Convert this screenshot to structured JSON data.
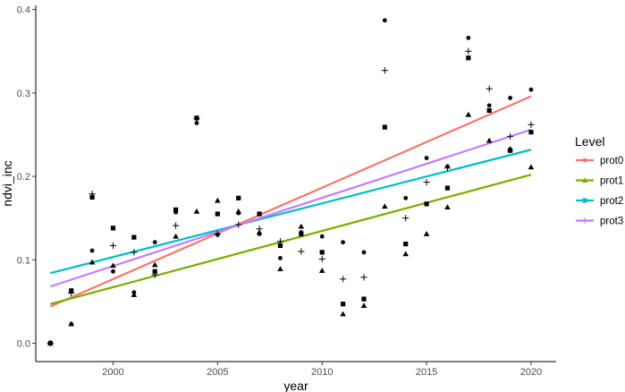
{
  "chart_data": {
    "type": "scatter",
    "xlabel": "year",
    "ylabel": "ndvi_inc",
    "xlim": [
      1996.3,
      2021.2
    ],
    "ylim": [
      -0.022,
      0.405
    ],
    "xticks": [
      2000,
      2005,
      2010,
      2015,
      2020
    ],
    "xtick_labels": [
      "2000",
      "2005",
      "2010",
      "2015",
      "2020"
    ],
    "yticks": [
      0.0,
      0.1,
      0.2,
      0.3,
      0.4
    ],
    "ytick_labels": [
      "0.0",
      "0.1",
      "0.2",
      "0.3",
      "0.4"
    ],
    "grid": false,
    "legend": {
      "title": "Level",
      "placement": "right"
    },
    "series": [
      {
        "name": "prot0",
        "color": "#F8766D",
        "marker": "circle",
        "trend": {
          "x": [
            1997,
            2020
          ],
          "y": [
            0.044,
            0.296
          ]
        },
        "points": [
          [
            1997,
            0.0
          ],
          [
            1998,
            0.023
          ],
          [
            1999,
            0.111
          ],
          [
            2000,
            0.086
          ],
          [
            2001,
            0.061
          ],
          [
            2002,
            0.121
          ],
          [
            2003,
            0.157
          ],
          [
            2004,
            0.264
          ],
          [
            2005,
            0.13
          ],
          [
            2006,
            0.156
          ],
          [
            2007,
            0.131
          ],
          [
            2008,
            0.102
          ],
          [
            2009,
            0.133
          ],
          [
            2010,
            0.128
          ],
          [
            2011,
            0.121
          ],
          [
            2012,
            0.109
          ],
          [
            2013,
            0.387
          ],
          [
            2014,
            0.174
          ],
          [
            2015,
            0.222
          ],
          [
            2016,
            0.212
          ],
          [
            2017,
            0.366
          ],
          [
            2018,
            0.285
          ],
          [
            2019,
            0.294
          ],
          [
            2020,
            0.304
          ]
        ]
      },
      {
        "name": "prot1",
        "color": "#7CAE00",
        "marker": "triangle",
        "trend": {
          "x": [
            1997,
            2020
          ],
          "y": [
            0.047,
            0.202
          ]
        },
        "points": [
          [
            1997,
            0.0
          ],
          [
            1998,
            0.023
          ],
          [
            1999,
            0.097
          ],
          [
            2000,
            0.093
          ],
          [
            2001,
            0.058
          ],
          [
            2002,
            0.094
          ],
          [
            2003,
            0.128
          ],
          [
            2004,
            0.158
          ],
          [
            2005,
            0.171
          ],
          [
            2006,
            0.158
          ],
          [
            2007,
            0.133
          ],
          [
            2008,
            0.089
          ],
          [
            2009,
            0.14
          ],
          [
            2010,
            0.087
          ],
          [
            2011,
            0.035
          ],
          [
            2012,
            0.045
          ],
          [
            2013,
            0.164
          ],
          [
            2014,
            0.107
          ],
          [
            2015,
            0.131
          ],
          [
            2016,
            0.163
          ],
          [
            2017,
            0.274
          ],
          [
            2018,
            0.243
          ],
          [
            2019,
            0.233
          ],
          [
            2020,
            0.211
          ]
        ]
      },
      {
        "name": "prot2",
        "color": "#00BFC4",
        "marker": "square",
        "trend": {
          "x": [
            1997,
            2020
          ],
          "y": [
            0.084,
            0.232
          ]
        },
        "points": [
          [
            1997,
            0.0
          ],
          [
            1998,
            0.063
          ],
          [
            1999,
            0.175
          ],
          [
            2000,
            0.138
          ],
          [
            2001,
            0.127
          ],
          [
            2002,
            0.086
          ],
          [
            2003,
            0.16
          ],
          [
            2004,
            0.27
          ],
          [
            2005,
            0.155
          ],
          [
            2006,
            0.174
          ],
          [
            2007,
            0.155
          ],
          [
            2008,
            0.117
          ],
          [
            2009,
            0.131
          ],
          [
            2010,
            0.109
          ],
          [
            2011,
            0.047
          ],
          [
            2012,
            0.053
          ],
          [
            2013,
            0.259
          ],
          [
            2014,
            0.119
          ],
          [
            2015,
            0.167
          ],
          [
            2016,
            0.186
          ],
          [
            2017,
            0.342
          ],
          [
            2018,
            0.279
          ],
          [
            2019,
            0.231
          ],
          [
            2020,
            0.253
          ]
        ]
      },
      {
        "name": "prot3",
        "color": "#C77CFF",
        "marker": "cross",
        "trend": {
          "x": [
            1997,
            2020
          ],
          "y": [
            0.068,
            0.256
          ]
        },
        "points": [
          [
            1997,
            0.0
          ],
          [
            1998,
            0.06
          ],
          [
            1999,
            0.179
          ],
          [
            2000,
            0.117
          ],
          [
            2001,
            0.109
          ],
          [
            2002,
            0.082
          ],
          [
            2003,
            0.141
          ],
          [
            2004,
            0.269
          ],
          [
            2005,
            0.131
          ],
          [
            2006,
            0.142
          ],
          [
            2007,
            0.137
          ],
          [
            2008,
            0.122
          ],
          [
            2009,
            0.11
          ],
          [
            2010,
            0.101
          ],
          [
            2011,
            0.077
          ],
          [
            2012,
            0.079
          ],
          [
            2013,
            0.327
          ],
          [
            2014,
            0.15
          ],
          [
            2015,
            0.193
          ],
          [
            2016,
            0.21
          ],
          [
            2017,
            0.35
          ],
          [
            2018,
            0.305
          ],
          [
            2019,
            0.248
          ],
          [
            2020,
            0.262
          ]
        ]
      }
    ]
  }
}
